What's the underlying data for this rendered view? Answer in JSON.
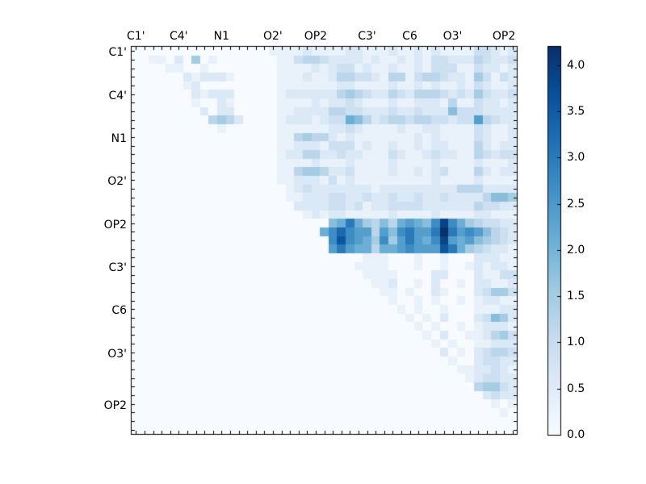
{
  "figure": {
    "background": "#ffffff"
  },
  "chart_data": {
    "type": "heatmap",
    "title": "",
    "xlabel": "",
    "ylabel": "",
    "n_cells": 45,
    "grid": false,
    "x_tick_labels": [
      "C1'",
      "C4'",
      "N1",
      "O2'",
      "OP2",
      "C3'",
      "C6",
      "O3'",
      "OP2"
    ],
    "y_tick_labels": [
      "C1'",
      "C4'",
      "N1",
      "O2'",
      "OP2",
      "C3'",
      "C6",
      "O3'",
      "OP2"
    ],
    "x_label_cell_positions": [
      0,
      5,
      10,
      16,
      21,
      27,
      32,
      37,
      43
    ],
    "y_label_cell_positions": [
      0,
      5,
      10,
      15,
      20,
      25,
      30,
      35,
      41
    ],
    "vmin": 0.0,
    "vmax": 4.2,
    "colormap": "Blues",
    "colormap_anchors": [
      "#f7fbff",
      "#deebf7",
      "#c6dbef",
      "#9ecae1",
      "#6baed6",
      "#4292c6",
      "#2171b5",
      "#08519c",
      "#08306b"
    ],
    "matrix_encoding": "45 strings of 45 hex chars; cell value = hexDigit * 0.3 (0='0.0' ... e='4.2'); row 0 = top row",
    "matrix_rows": [
      "000000000000000011112111122111211212111133212",
      "001102050100000001134432222121121213322243223",
      "000011001000000001111212331211211213331132212",
      "000000212221000001112112443321441344322153132",
      "000000120000000001111111221111211212112132112",
      "000000021222000001222222454322432444323253223",
      "000000010021000001111212232111211222141132212",
      "000000002022000001122224433222322322263332222",
      "000000000454200001222123376423443443323384322",
      "000000000010000001111112232111121122111132112",
      "000000000000000001145442121111111212111132112",
      "000000000000000001122213331211211212211142122",
      "000000000000000001224422322111321123221143233",
      "000000000000000001111211121111211112111121112",
      "000000000000000001145542231111211212311142122",
      "000000000000000001122213121111111112111121111",
      "000000000000000000123222222212222222224442222",
      "000000000000000000112223322322322322322224665",
      "000000000000000000022223323122333322222243322",
      "000000000000000000001212211111211112111122111",
      "0000000000000000000000067a7546478769d97543322",
      "000000000000000000000079b9884869a88aea8986432",
      "000000000000000000000009c9875958a879d87865432",
      "000000000000000000000008a87747789888ca7543221",
      "000000000000000000000000000111000100100022211",
      "000000000000000000000000001111000100100121221",
      "000000000000000000000000000111100002200021133",
      "000000000000000000000000000011200102001022112",
      "000000000000000000000000000001101002100023553",
      "000000000000000000000000000000100101001012211",
      "000000000000000000000000000000010100100011122",
      "000000000000000000000000000000001010200023652",
      "000000000000000000000000000000000101001012221",
      "000000000000000000000000000000000010200112453",
      "000000000000000000000000000000000001010011222",
      "000000000000000000000000000000000000201023443",
      "000000000000000000000000000000000000010023322",
      "000000000000000000000000000000000000001122321",
      "000000000000000000000000000000000000000123322",
      "000000000000000000000000000000000000000045532",
      "000000000000000000000000000000000000000002322",
      "000000000000000000000000000000000000000000101",
      "000000000000000000000000000000000000000000010",
      "000000000000000000000000000000000000000000000",
      "000000000000000000000000000000000000000000000"
    ],
    "colorbar": {
      "tick_labels": [
        "0.0",
        "0.5",
        "1.0",
        "1.5",
        "2.0",
        "2.5",
        "3.0",
        "3.5",
        "4.0"
      ],
      "tick_values": [
        0.0,
        0.5,
        1.0,
        1.5,
        2.0,
        2.5,
        3.0,
        3.5,
        4.0
      ],
      "position": "right"
    }
  }
}
